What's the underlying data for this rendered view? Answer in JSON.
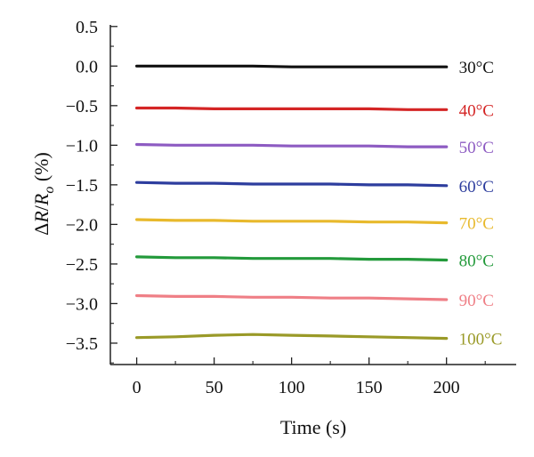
{
  "chart_data": {
    "type": "line",
    "title": "",
    "xlabel": "Time (s)",
    "ylabel": {
      "delta": "Δ",
      "R": "R",
      "slash": "/",
      "Ro": "R",
      "sub": "o",
      "unit": " (%)"
    },
    "xlim": [
      -17,
      245
    ],
    "ylim": [
      -3.77,
      0.52
    ],
    "x_ticks": [
      0,
      50,
      100,
      150,
      200
    ],
    "x_tick_labels": [
      "0",
      "50",
      "100",
      "150",
      "200"
    ],
    "y_ticks": [
      0.5,
      0.0,
      -0.5,
      -1.0,
      -1.5,
      -2.0,
      -2.5,
      -3.0,
      -3.5
    ],
    "y_tick_labels": [
      "0.5",
      "0.0",
      "−0.5",
      "−1.0",
      "−1.5",
      "−2.0",
      "−2.5",
      "−3.0",
      "−3.5"
    ],
    "x": [
      0,
      25,
      50,
      75,
      100,
      125,
      150,
      175,
      200
    ],
    "grid": false,
    "legend": "inline labels at right end of each line",
    "series": [
      {
        "name": "30°C",
        "color": "#111111",
        "values": [
          0.0,
          0.0,
          0.0,
          0.0,
          -0.01,
          -0.01,
          -0.01,
          -0.01,
          -0.01
        ]
      },
      {
        "name": "40°C",
        "color": "#d42525",
        "values": [
          -0.53,
          -0.53,
          -0.54,
          -0.54,
          -0.54,
          -0.54,
          -0.54,
          -0.55,
          -0.55
        ]
      },
      {
        "name": "50°C",
        "color": "#8d5bc2",
        "values": [
          -0.99,
          -1.0,
          -1.0,
          -1.0,
          -1.01,
          -1.01,
          -1.01,
          -1.02,
          -1.02
        ]
      },
      {
        "name": "60°C",
        "color": "#2d3d9e",
        "values": [
          -1.47,
          -1.48,
          -1.48,
          -1.49,
          -1.49,
          -1.49,
          -1.5,
          -1.5,
          -1.51
        ]
      },
      {
        "name": "70°C",
        "color": "#e8b92c",
        "values": [
          -1.94,
          -1.95,
          -1.95,
          -1.96,
          -1.96,
          -1.96,
          -1.97,
          -1.97,
          -1.98
        ]
      },
      {
        "name": "80°C",
        "color": "#239a3b",
        "values": [
          -2.41,
          -2.42,
          -2.42,
          -2.43,
          -2.43,
          -2.43,
          -2.44,
          -2.44,
          -2.45
        ]
      },
      {
        "name": "90°C",
        "color": "#ef7f86",
        "values": [
          -2.9,
          -2.91,
          -2.91,
          -2.92,
          -2.92,
          -2.93,
          -2.93,
          -2.94,
          -2.95
        ]
      },
      {
        "name": "100°C",
        "color": "#9a9a28",
        "values": [
          -3.43,
          -3.42,
          -3.4,
          -3.39,
          -3.4,
          -3.41,
          -3.42,
          -3.43,
          -3.44
        ]
      }
    ]
  }
}
